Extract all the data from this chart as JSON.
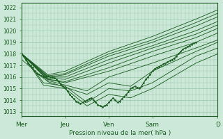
{
  "title": "Pression niveau de la mer( hPa )",
  "ylabel_ticks": [
    1013,
    1014,
    1015,
    1016,
    1017,
    1018,
    1019,
    1020,
    1021,
    1022
  ],
  "ylim": [
    1012.6,
    1022.4
  ],
  "xlim": [
    0,
    4.5
  ],
  "x_ticks": [
    0,
    1,
    2,
    3,
    4.5
  ],
  "x_labels": [
    "Mer",
    "Jeu",
    "Ven",
    "Sam",
    "D"
  ],
  "bg_color": "#cce8d8",
  "grid_color": "#99c4aa",
  "line_color": "#1a5c20",
  "obs_x": [
    0.0,
    0.05,
    0.1,
    0.15,
    0.2,
    0.25,
    0.3,
    0.35,
    0.4,
    0.45,
    0.5,
    0.55,
    0.6,
    0.65,
    0.7,
    0.75,
    0.8,
    0.85,
    0.9,
    0.95,
    1.0,
    1.05,
    1.1,
    1.15,
    1.2,
    1.25,
    1.3,
    1.35,
    1.4,
    1.45,
    1.5,
    1.55,
    1.6,
    1.65,
    1.7,
    1.75,
    1.8,
    1.85,
    1.9,
    1.95,
    2.0,
    2.05,
    2.1,
    2.15,
    2.2,
    2.25,
    2.3,
    2.35,
    2.4,
    2.45,
    2.5,
    2.55,
    2.6,
    2.65,
    2.7,
    2.75,
    2.8,
    2.85,
    2.9,
    2.95,
    3.0,
    3.05,
    3.1,
    3.15,
    3.2,
    3.25,
    3.3,
    3.35,
    3.4,
    3.45,
    3.5,
    3.55,
    3.6,
    3.65,
    3.7,
    3.75,
    3.8,
    3.85,
    3.9,
    3.95,
    4.0
  ],
  "obs_y": [
    1018.0,
    1017.8,
    1017.5,
    1017.2,
    1017.0,
    1016.8,
    1016.5,
    1016.3,
    1016.2,
    1016.1,
    1016.0,
    1016.0,
    1016.1,
    1016.0,
    1016.0,
    1015.9,
    1015.8,
    1015.6,
    1015.4,
    1015.2,
    1015.0,
    1014.8,
    1014.5,
    1014.3,
    1014.1,
    1013.9,
    1013.8,
    1013.7,
    1013.8,
    1013.9,
    1014.0,
    1014.1,
    1014.2,
    1014.0,
    1013.8,
    1013.6,
    1013.5,
    1013.4,
    1013.5,
    1013.6,
    1013.8,
    1014.0,
    1014.2,
    1014.0,
    1013.8,
    1013.9,
    1014.1,
    1014.3,
    1014.5,
    1014.7,
    1015.0,
    1015.1,
    1015.2,
    1015.1,
    1015.0,
    1015.2,
    1015.5,
    1015.8,
    1016.0,
    1016.2,
    1016.5,
    1016.7,
    1016.8,
    1016.9,
    1017.0,
    1017.1,
    1017.2,
    1017.3,
    1017.4,
    1017.5,
    1017.6,
    1017.8,
    1018.0,
    1018.2,
    1018.4,
    1018.5,
    1018.6,
    1018.7,
    1018.8,
    1018.9,
    1019.0
  ],
  "ensemble_lines": [
    {
      "x": [
        0.0,
        0.6,
        1.0,
        2.0,
        3.0,
        4.0,
        4.5
      ],
      "y": [
        1018.0,
        1016.2,
        1016.5,
        1018.2,
        1019.5,
        1021.0,
        1021.8
      ]
    },
    {
      "x": [
        0.0,
        0.6,
        1.0,
        2.0,
        3.0,
        4.0,
        4.5
      ],
      "y": [
        1018.0,
        1016.1,
        1016.3,
        1018.0,
        1019.2,
        1020.7,
        1021.5
      ]
    },
    {
      "x": [
        0.0,
        0.6,
        1.0,
        2.0,
        3.0,
        4.0,
        4.5
      ],
      "y": [
        1018.0,
        1016.0,
        1016.2,
        1017.8,
        1019.0,
        1020.4,
        1021.2
      ]
    },
    {
      "x": [
        0.0,
        0.6,
        1.0,
        2.0,
        3.0,
        4.0,
        4.5
      ],
      "y": [
        1018.0,
        1016.0,
        1016.0,
        1017.5,
        1018.7,
        1020.0,
        1020.8
      ]
    },
    {
      "x": [
        0.0,
        0.6,
        1.0,
        2.0,
        3.0,
        4.0,
        4.5
      ],
      "y": [
        1018.0,
        1015.9,
        1015.8,
        1017.2,
        1018.5,
        1019.7,
        1020.5
      ]
    },
    {
      "x": [
        0.0,
        0.6,
        1.0,
        2.0,
        3.0,
        4.0,
        4.5
      ],
      "y": [
        1018.0,
        1015.8,
        1015.6,
        1016.8,
        1018.2,
        1019.4,
        1020.2
      ]
    },
    {
      "x": [
        0.0,
        0.6,
        1.0,
        2.0,
        3.0,
        4.0,
        4.5
      ],
      "y": [
        1018.0,
        1015.8,
        1015.5,
        1016.5,
        1017.8,
        1019.0,
        1019.8
      ]
    },
    {
      "x": [
        0.0,
        0.6,
        1.5,
        2.0,
        3.0,
        4.0,
        4.5
      ],
      "y": [
        1018.0,
        1015.7,
        1014.8,
        1016.0,
        1017.2,
        1018.5,
        1019.2
      ]
    },
    {
      "x": [
        0.0,
        0.6,
        1.5,
        2.0,
        2.5,
        3.0,
        4.0,
        4.5
      ],
      "y": [
        1017.5,
        1015.6,
        1014.5,
        1015.5,
        1015.2,
        1016.5,
        1018.2,
        1019.0
      ]
    },
    {
      "x": [
        0.0,
        0.5,
        1.0,
        1.5,
        2.0,
        2.5,
        3.0,
        4.0,
        4.5
      ],
      "y": [
        1018.0,
        1015.5,
        1015.2,
        1013.8,
        1015.0,
        1014.8,
        1015.5,
        1017.8,
        1018.5
      ]
    },
    {
      "x": [
        0.0,
        0.5,
        1.0,
        1.5,
        2.0,
        2.5,
        3.0,
        4.0,
        4.5
      ],
      "y": [
        1018.0,
        1015.3,
        1015.0,
        1013.5,
        1014.5,
        1014.2,
        1015.0,
        1017.2,
        1018.0
      ]
    }
  ]
}
